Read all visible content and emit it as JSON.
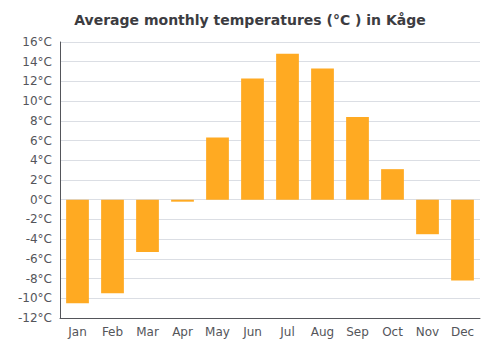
{
  "chart_data": {
    "type": "bar",
    "title": "Average monthly temperatures (°C ) in Kåge",
    "categories": [
      "Jan",
      "Feb",
      "Mar",
      "Apr",
      "May",
      "Jun",
      "Jul",
      "Aug",
      "Sep",
      "Oct",
      "Nov",
      "Dec"
    ],
    "values": [
      -10.5,
      -9.5,
      -5.3,
      -0.2,
      6.3,
      12.3,
      14.8,
      13.3,
      8.4,
      3.1,
      -3.5,
      -8.2
    ],
    "color": "#FFAA22",
    "ylim": [
      -12,
      16
    ],
    "yticks": [
      {
        "value": -12,
        "label": "-12°C"
      },
      {
        "value": -10,
        "label": "-10°C"
      },
      {
        "value": -8,
        "label": "-8°C"
      },
      {
        "value": -6,
        "label": "-6°C"
      },
      {
        "value": -4,
        "label": "-4°C"
      },
      {
        "value": -2,
        "label": "-2°C"
      },
      {
        "value": 0,
        "label": "0°C"
      },
      {
        "value": 2,
        "label": "2°C"
      },
      {
        "value": 4,
        "label": "4°C"
      },
      {
        "value": 6,
        "label": "6°C"
      },
      {
        "value": 8,
        "label": "8°C"
      },
      {
        "value": 10,
        "label": "10°C"
      },
      {
        "value": 12,
        "label": "12°C"
      },
      {
        "value": 14,
        "label": "14°C"
      },
      {
        "value": 16,
        "label": "16°C"
      }
    ],
    "grid": true
  }
}
